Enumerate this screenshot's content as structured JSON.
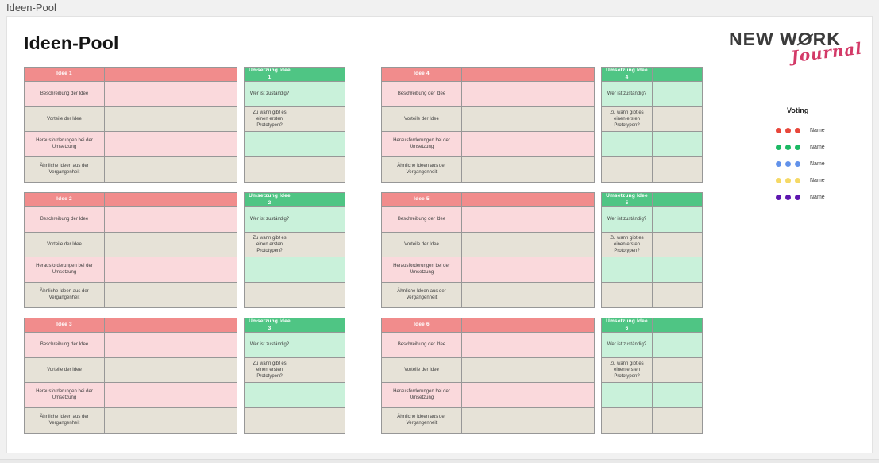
{
  "window": {
    "title": "Ideen-Pool"
  },
  "page": {
    "heading": "Ideen-Pool"
  },
  "logo": {
    "text_before_o": "NEW W",
    "text_o": "O",
    "text_after_o": "RK",
    "script": "Journal"
  },
  "voting": {
    "title": "Voting",
    "dots_per_entry": 3,
    "entries": [
      {
        "color": "#e8473b",
        "label": "Name"
      },
      {
        "color": "#1cb964",
        "label": "Name"
      },
      {
        "color": "#6292ea",
        "label": "Name"
      },
      {
        "color": "#f5d966",
        "label": "Name"
      },
      {
        "color": "#5e17af",
        "label": "Name"
      }
    ]
  },
  "tables": {
    "idea_rows": [
      "Beschreibung der Idee",
      "Vorteile der Idee",
      "Herausforderungen bei der Umsetzung",
      "Ähnliche Ideen aus der Vergangenheit"
    ],
    "umsetzung_rows": [
      "Wer ist zuständig?",
      "Zu wann gibt es einen ersten Prototypen?",
      "",
      ""
    ],
    "ideas": [
      {
        "title": "Idee 1",
        "umsetzung_title": "Umsetzung Idee 1"
      },
      {
        "title": "Idee 2",
        "umsetzung_title": "Umsetzung Idee 2"
      },
      {
        "title": "Idee 3",
        "umsetzung_title": "Umsetzung Idee 3"
      },
      {
        "title": "Idee 4",
        "umsetzung_title": "Umsetzung Idee 4"
      },
      {
        "title": "Idee 5",
        "umsetzung_title": "Umsetzung Idee 5"
      },
      {
        "title": "Idee 6",
        "umsetzung_title": "Umsetzung Idee 6"
      }
    ]
  },
  "colors": {
    "idea_header": "#f18c8c",
    "idea_tint": "#fad9dc",
    "neutral_cell": "#e6e2d7",
    "umsetzung_header": "#4fc584",
    "umsetzung_tint": "#c9f1da",
    "table_border": "#979797",
    "logo_script": "#d33a68"
  }
}
